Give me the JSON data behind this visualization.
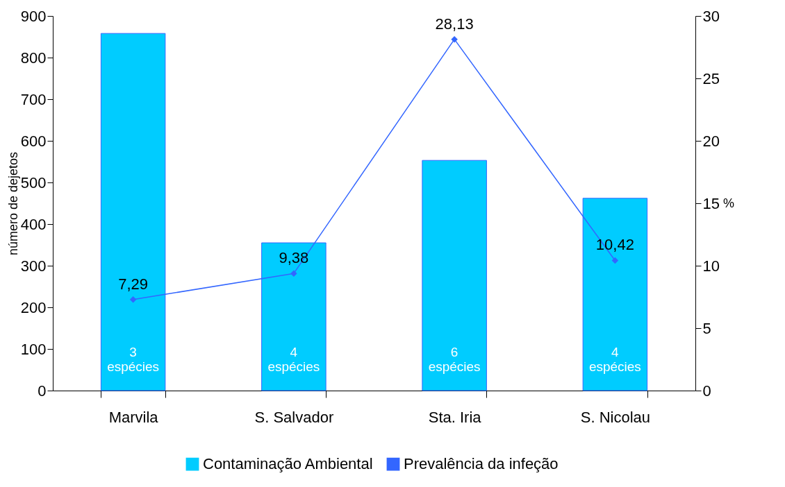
{
  "chart_data": {
    "type": "bar",
    "categories": [
      "Marvila",
      "S. Salvador",
      "Sta. Iria",
      "S. Nicolau"
    ],
    "ylabel": "número de dejetos",
    "y2label": "%",
    "ylim": [
      0,
      900
    ],
    "yticks": [
      0,
      100,
      200,
      300,
      400,
      500,
      600,
      700,
      800,
      900
    ],
    "y2lim": [
      0,
      30
    ],
    "y2ticks": [
      0,
      5,
      10,
      15,
      20,
      25,
      30
    ],
    "grid": false,
    "legend": "bottom",
    "series": [
      {
        "name": "Contaminação  Ambiental",
        "color": "#00ccff",
        "values": [
          858,
          355,
          553,
          462
        ]
      },
      {
        "name": "Prevalência da infeção",
        "type": "line",
        "axis": "y2",
        "color": "#3366ff",
        "marker": "diamond",
        "values": [
          7.29,
          9.38,
          28.13,
          10.42
        ],
        "value_labels": [
          "7,29",
          "9,38",
          "28,13",
          "10,42"
        ]
      }
    ],
    "annotations": [
      "3 espécies",
      "4 espécies",
      "6 espécies",
      "4 espécies"
    ]
  }
}
